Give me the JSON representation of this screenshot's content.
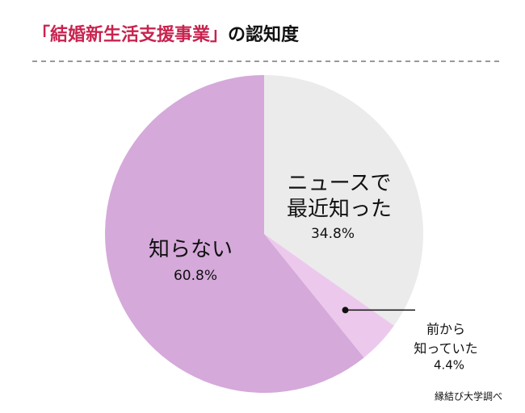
{
  "chart_data": {
    "type": "pie",
    "title_parts": [
      "「結婚新生活支援事業」",
      "の認知度"
    ],
    "categories": [
      [
        "ニュースで",
        "最近知った"
      ],
      [
        "前から",
        "知っていた"
      ],
      [
        "知らない"
      ]
    ],
    "values": [
      34.8,
      4.4,
      60.8
    ],
    "value_labels": [
      "34.8%",
      "4.4%",
      "60.8%"
    ],
    "colors": [
      "#ebebeb",
      "#ecc9ec",
      "#d5a9da"
    ],
    "title_color": "#c8234f",
    "source": "縁結び大学調べ"
  }
}
